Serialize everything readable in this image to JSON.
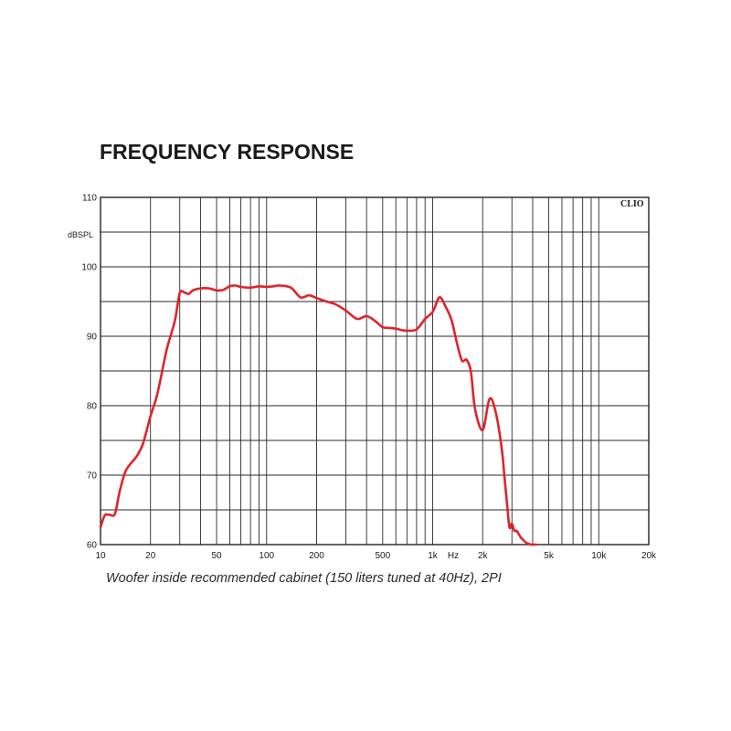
{
  "chart_data": {
    "type": "line",
    "title": "FREQUENCY RESPONSE",
    "ylabel": "dBSPL",
    "brand": "CLIO",
    "x_unit_label": "Hz",
    "caption": "Woofer inside recommended cabinet (150 liters tuned at 40Hz), 2PI",
    "x_scale": "log",
    "xlim": [
      10,
      20000
    ],
    "ylim": [
      60,
      110
    ],
    "grid": true,
    "x_ticks": [
      {
        "value": 10,
        "label": "10"
      },
      {
        "value": 20,
        "label": "20"
      },
      {
        "value": 50,
        "label": "50"
      },
      {
        "value": 100,
        "label": "100"
      },
      {
        "value": 200,
        "label": "200"
      },
      {
        "value": 500,
        "label": "500"
      },
      {
        "value": 1000,
        "label": "1k"
      },
      {
        "value": 2000,
        "label": "2k"
      },
      {
        "value": 5000,
        "label": "5k"
      },
      {
        "value": 10000,
        "label": "10k"
      },
      {
        "value": 20000,
        "label": "20k"
      }
    ],
    "y_ticks": [
      {
        "value": 60,
        "label": "60"
      },
      {
        "value": 70,
        "label": "70"
      },
      {
        "value": 80,
        "label": "80"
      },
      {
        "value": 90,
        "label": "90"
      },
      {
        "value": 100,
        "label": "100"
      },
      {
        "value": 110,
        "label": "110"
      }
    ],
    "series": [
      {
        "color": "#e0232b",
        "x": [
          10,
          10.6,
          11.3,
          12.2,
          13,
          14,
          15,
          16.5,
          18,
          20,
          22,
          25,
          28,
          30,
          32,
          34,
          36,
          40,
          45,
          50,
          55,
          60,
          65,
          70,
          80,
          90,
          100,
          110,
          120,
          140,
          160,
          180,
          200,
          230,
          260,
          300,
          350,
          400,
          450,
          500,
          550,
          600,
          650,
          700,
          800,
          900,
          1000,
          1100,
          1200,
          1300,
          1400,
          1500,
          1600,
          1700,
          1800,
          2000,
          2200,
          2400,
          2600,
          2700,
          2800,
          2900,
          3000,
          3100,
          3200,
          3300,
          3400,
          3500,
          3600,
          3700,
          3800,
          3900,
          4000,
          4100,
          4200
        ],
        "y": [
          62.5,
          64.2,
          64.3,
          64.4,
          67.5,
          70.3,
          71.5,
          72.7,
          74.5,
          78.5,
          81.7,
          88,
          92.2,
          96.2,
          96.3,
          96.1,
          96.6,
          96.9,
          96.9,
          96.6,
          96.7,
          97.2,
          97.3,
          97.1,
          97.0,
          97.2,
          97.1,
          97.2,
          97.3,
          97.0,
          95.6,
          95.9,
          95.5,
          95.0,
          94.6,
          93.7,
          92.5,
          92.9,
          92.2,
          91.3,
          91.2,
          91.1,
          90.9,
          90.8,
          91.0,
          92.5,
          93.5,
          95.6,
          94.2,
          92.3,
          89.0,
          86.5,
          86.6,
          84.8,
          79.5,
          76.5,
          81.0,
          79.0,
          74.0,
          70.0,
          66.0,
          62.5,
          63.0,
          62.0,
          62.0,
          61.5,
          61.0,
          60.7,
          60.4,
          60.2,
          60.1,
          60.0,
          60.0,
          60.0,
          60.0
        ]
      }
    ]
  }
}
